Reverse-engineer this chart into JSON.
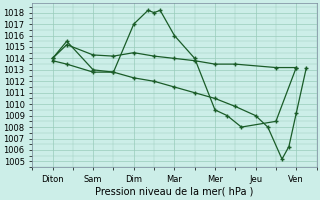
{
  "background_color": "#cceee8",
  "grid_color": "#99ccbb",
  "line_color": "#1a5c28",
  "marker": "+",
  "xlabel": "Pression niveau de la mer( hPa )",
  "xlabel_fontsize": 7,
  "tick_fontsize": 6,
  "ylim": [
    1004.8,
    1018.8
  ],
  "yticks": [
    1005,
    1006,
    1007,
    1008,
    1009,
    1010,
    1011,
    1012,
    1013,
    1014,
    1015,
    1016,
    1017,
    1018
  ],
  "xtick_labels": [
    "Diton",
    "Sam",
    "Dim",
    "Mar",
    "Mer",
    "Jeu",
    "Ven"
  ],
  "xlim": [
    -0.15,
    6.5
  ],
  "s1_x": [
    0,
    0.35,
    1.0,
    1.5,
    2.0,
    2.35,
    2.5,
    2.65,
    3.0,
    3.5,
    4.0,
    4.3,
    4.65,
    5.5,
    6.0
  ],
  "s1_y": [
    1014.0,
    1015.5,
    1013.0,
    1012.8,
    1017.0,
    1018.2,
    1018.0,
    1018.2,
    1016.0,
    1014.0,
    1009.5,
    1009.0,
    1008.0,
    1008.5,
    1013.2
  ],
  "s2_x": [
    0,
    0.35,
    1.0,
    1.5,
    2.0,
    2.5,
    3.0,
    3.5,
    4.0,
    4.5,
    5.5,
    6.0
  ],
  "s2_y": [
    1014.0,
    1015.2,
    1014.3,
    1014.2,
    1014.5,
    1014.2,
    1014.0,
    1013.8,
    1013.5,
    1013.5,
    1013.2,
    1013.2
  ],
  "s3_x": [
    0,
    0.35,
    1.0,
    1.5,
    2.0,
    2.5,
    3.0,
    3.5,
    4.0,
    4.5,
    5.0,
    5.3,
    5.65,
    5.82,
    6.0,
    6.25
  ],
  "s3_y": [
    1013.8,
    1013.5,
    1012.8,
    1012.8,
    1012.3,
    1012.0,
    1011.5,
    1011.0,
    1010.5,
    1009.8,
    1009.0,
    1008.0,
    1005.2,
    1006.3,
    1009.2,
    1013.2
  ]
}
